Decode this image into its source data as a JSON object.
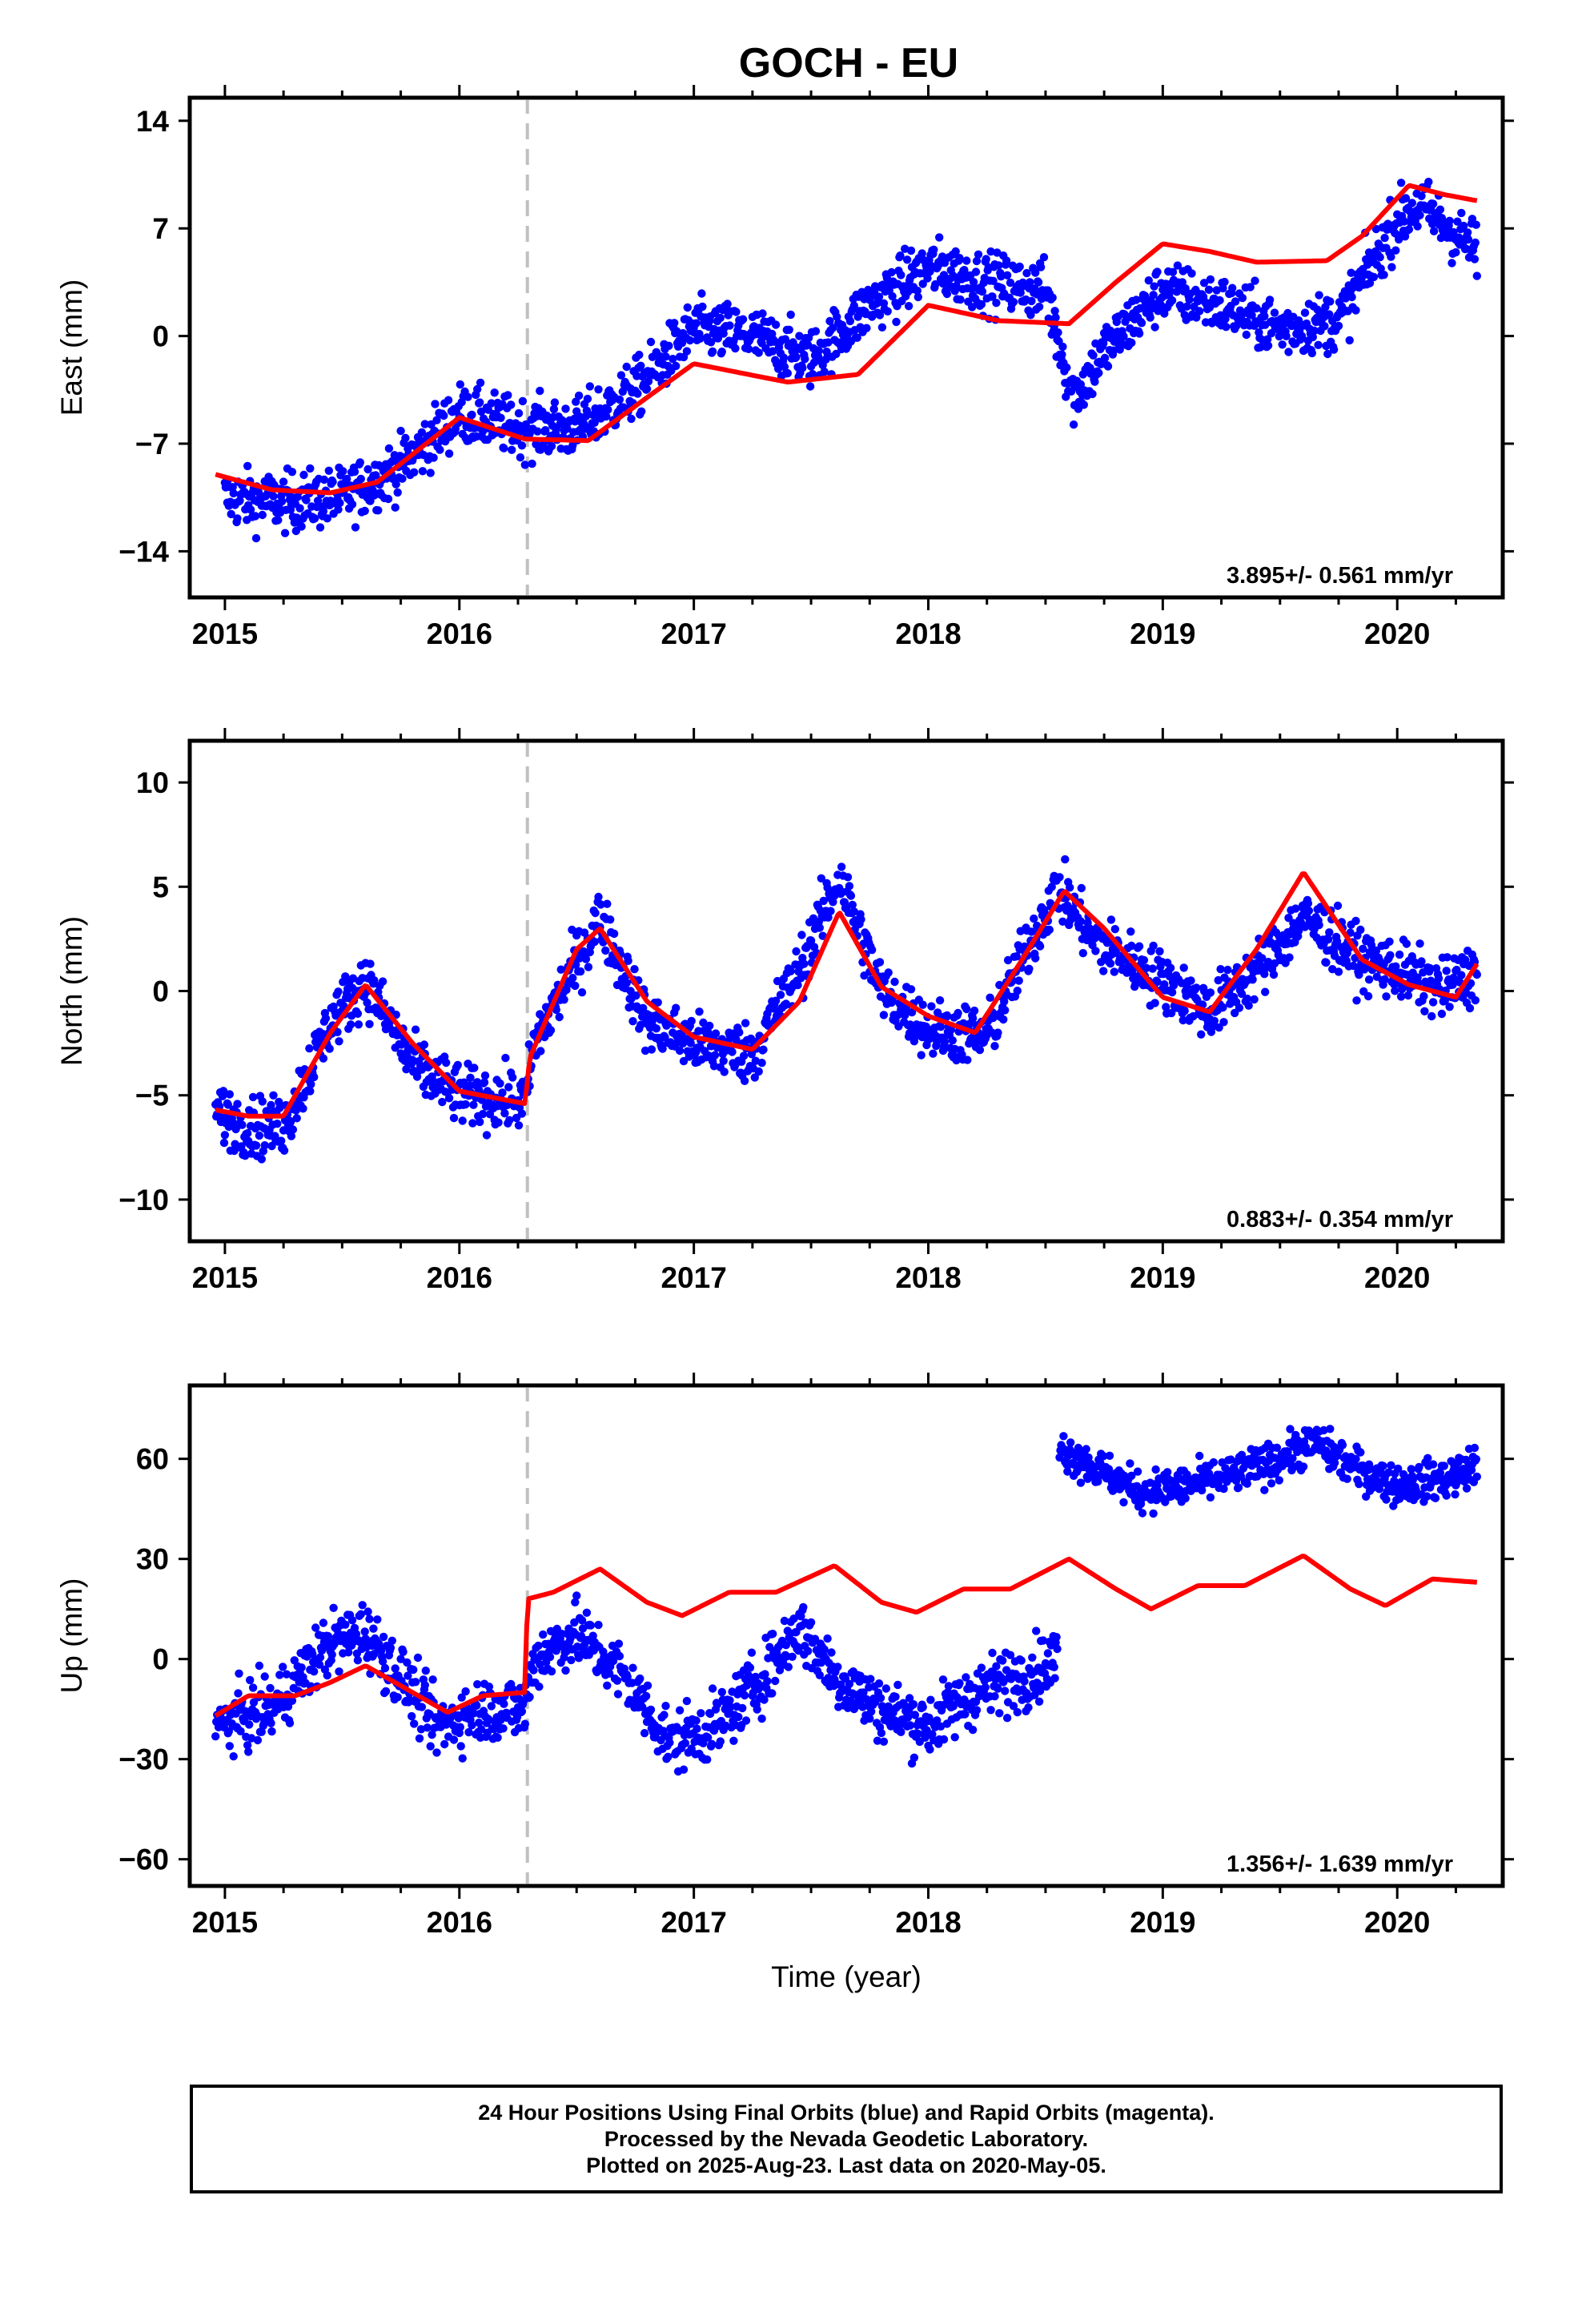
{
  "title": "GOCH - EU",
  "colors": {
    "points": "#0000ff",
    "model": "#ff0000",
    "offset_line": "#c0c0c0",
    "axes": "#000000"
  },
  "footer": {
    "line1": "24 Hour Positions Using Final Orbits (blue) and Rapid Orbits (magenta).",
    "line2": "Processed by the Nevada Geodetic Laboratory.",
    "line3": "Plotted on 2025-Aug-23. Last data on 2020-May-05."
  },
  "chart_data": [
    {
      "type": "scatter",
      "ylabel": "East (mm)",
      "xlim": [
        2014.85,
        2020.45
      ],
      "ylim": [
        -17,
        15.5
      ],
      "yticks": [
        -14,
        -7,
        0,
        7,
        14
      ],
      "xticks": [
        2015,
        2016,
        2017,
        2018,
        2019,
        2020
      ],
      "xtick_labels": [
        "2015",
        "2016",
        "2017",
        "2018",
        "2019",
        "2020"
      ],
      "rate_label": "3.895+/- 0.561 mm/yr",
      "offset_epoch": 2016.29,
      "data_range": [
        2014.96,
        2020.34
      ],
      "series": [
        {
          "kind": "observations",
          "x": [
            2015.0,
            2015.25,
            2015.5,
            2015.75,
            2016.0,
            2016.25,
            2016.5,
            2016.75,
            2017.0,
            2017.25,
            2017.5,
            2017.75,
            2018.0,
            2018.25,
            2018.5,
            2018.62,
            2018.75,
            2019.0,
            2019.25,
            2019.5,
            2019.75,
            2020.0,
            2020.1,
            2020.34
          ],
          "y": [
            -10.5,
            -10.8,
            -10.5,
            -8.5,
            -5.0,
            -6.0,
            -6.0,
            -3.5,
            0.5,
            0.0,
            -1.5,
            2.0,
            4.5,
            3.5,
            3.0,
            -4.0,
            -1.0,
            3.0,
            2.0,
            0.5,
            1.0,
            7.5,
            8.5,
            5.5
          ],
          "spread": 1.6
        },
        {
          "kind": "model",
          "x": [
            2014.96,
            2015.2,
            2015.45,
            2015.65,
            2016.0,
            2016.28,
            2016.55,
            2016.8,
            2017.0,
            2017.4,
            2017.7,
            2017.9,
            2018.0,
            2018.3,
            2018.6,
            2018.8,
            2019.0,
            2019.2,
            2019.4,
            2019.7,
            2019.85,
            2020.05,
            2020.2,
            2020.34
          ],
          "y": [
            -9.0,
            -10.0,
            -10.2,
            -9.5,
            -5.3,
            -6.7,
            -6.8,
            -4.0,
            -1.8,
            -3.0,
            -2.5,
            0.5,
            2.0,
            1.0,
            0.8,
            3.5,
            6.0,
            5.5,
            4.8,
            4.9,
            6.5,
            9.8,
            9.2,
            8.8
          ]
        }
      ]
    },
    {
      "type": "scatter",
      "ylabel": "North (mm)",
      "xlim": [
        2014.85,
        2020.45
      ],
      "ylim": [
        -12,
        12
      ],
      "yticks": [
        -10,
        -5,
        0,
        5,
        10
      ],
      "xticks": [
        2015,
        2016,
        2017,
        2018,
        2019,
        2020
      ],
      "xtick_labels": [
        "2015",
        "2016",
        "2017",
        "2018",
        "2019",
        "2020"
      ],
      "rate_label": "0.883+/- 0.354 mm/yr",
      "offset_epoch": 2016.29,
      "data_range": [
        2014.96,
        2020.34
      ],
      "series": [
        {
          "kind": "observations",
          "x": [
            2014.96,
            2015.1,
            2015.25,
            2015.45,
            2015.6,
            2015.8,
            2016.0,
            2016.28,
            2016.32,
            2016.6,
            2016.8,
            2017.0,
            2017.25,
            2017.45,
            2017.62,
            2017.8,
            2018.0,
            2018.25,
            2018.4,
            2018.55,
            2018.7,
            2019.0,
            2019.2,
            2019.4,
            2019.6,
            2019.85,
            2020.0,
            2020.2,
            2020.34
          ],
          "y": [
            -5.8,
            -6.5,
            -6.5,
            -1.5,
            0.5,
            -3.5,
            -5.0,
            -5.3,
            -2.5,
            3.5,
            -1.5,
            -2.5,
            -3.0,
            1.0,
            5.5,
            0.0,
            -1.8,
            -2.2,
            1.5,
            5.0,
            2.5,
            0.5,
            -1.0,
            1.0,
            3.5,
            1.5,
            1.0,
            0.0,
            1.0
          ],
          "spread": 1.2
        },
        {
          "kind": "model",
          "x": [
            2014.96,
            2015.1,
            2015.25,
            2015.45,
            2015.6,
            2015.8,
            2016.0,
            2016.28,
            2016.3,
            2016.5,
            2016.6,
            2016.8,
            2017.0,
            2017.25,
            2017.45,
            2017.62,
            2017.8,
            2018.0,
            2018.2,
            2018.4,
            2018.58,
            2018.75,
            2019.0,
            2019.2,
            2019.4,
            2019.6,
            2019.85,
            2020.05,
            2020.25,
            2020.34
          ],
          "y": [
            -5.7,
            -6.0,
            -6.0,
            -2.0,
            0.3,
            -2.5,
            -4.8,
            -5.4,
            -3.2,
            2.0,
            3.0,
            -0.5,
            -2.2,
            -2.8,
            -0.5,
            3.8,
            0.2,
            -1.2,
            -2.0,
            1.5,
            4.8,
            3.0,
            -0.3,
            -1.0,
            2.0,
            5.7,
            1.5,
            0.3,
            -0.3,
            1.3
          ]
        }
      ]
    },
    {
      "type": "scatter",
      "ylabel": "Up (mm)",
      "xlabel": "Time (year)",
      "xlim": [
        2014.85,
        2020.45
      ],
      "ylim": [
        -68,
        82
      ],
      "yticks": [
        -60,
        -30,
        0,
        30,
        60
      ],
      "xticks": [
        2015,
        2016,
        2017,
        2018,
        2019,
        2020
      ],
      "xtick_labels": [
        "2015",
        "2016",
        "2017",
        "2018",
        "2019",
        "2020"
      ],
      "rate_label": "1.356+/- 1.639 mm/yr",
      "offset_epoch": 2016.29,
      "data_range": [
        2014.96,
        2020.34
      ],
      "series": [
        {
          "kind": "observations",
          "x": [
            2014.96,
            2015.2,
            2015.45,
            2015.6,
            2015.8,
            2015.9,
            2016.1,
            2016.28,
            2016.32,
            2016.5,
            2016.7,
            2016.9,
            2017.1,
            2017.3,
            2017.45,
            2017.6,
            2017.8,
            2018.0,
            2018.2,
            2018.4,
            2018.55
          ],
          "y": [
            -20,
            -15,
            5,
            8,
            -10,
            -20,
            -15,
            -15,
            0,
            8,
            -5,
            -25,
            -20,
            -5,
            10,
            -5,
            -15,
            -20,
            -10,
            -5,
            0
          ],
          "spread": 8
        },
        {
          "kind": "observations",
          "x": [
            2018.56,
            2018.7,
            2018.9,
            2019.1,
            2019.3,
            2019.5,
            2019.65,
            2019.8,
            2020.0,
            2020.2,
            2020.34
          ],
          "y": [
            63,
            58,
            50,
            52,
            55,
            60,
            65,
            58,
            52,
            54,
            58
          ],
          "spread": 5
        },
        {
          "kind": "model",
          "x": [
            2014.96,
            2015.1,
            2015.3,
            2015.45,
            2015.6,
            2015.75,
            2015.95,
            2016.1,
            2016.28,
            2016.29,
            2016.4,
            2016.6,
            2016.8,
            2016.95,
            2017.15,
            2017.35,
            2017.6,
            2017.8,
            2017.95,
            2018.15,
            2018.35,
            2018.6,
            2018.8,
            2018.95,
            2019.15,
            2019.35,
            2019.6,
            2019.8,
            2019.95,
            2020.15,
            2020.34
          ],
          "y": [
            -17,
            -11,
            -11,
            -7,
            -2,
            -8,
            -16,
            -11,
            -10,
            18,
            20,
            27,
            17,
            13,
            20,
            20,
            28,
            17,
            14,
            21,
            21,
            30,
            21,
            15,
            22,
            22,
            31,
            21,
            16,
            24,
            23
          ]
        }
      ]
    }
  ]
}
